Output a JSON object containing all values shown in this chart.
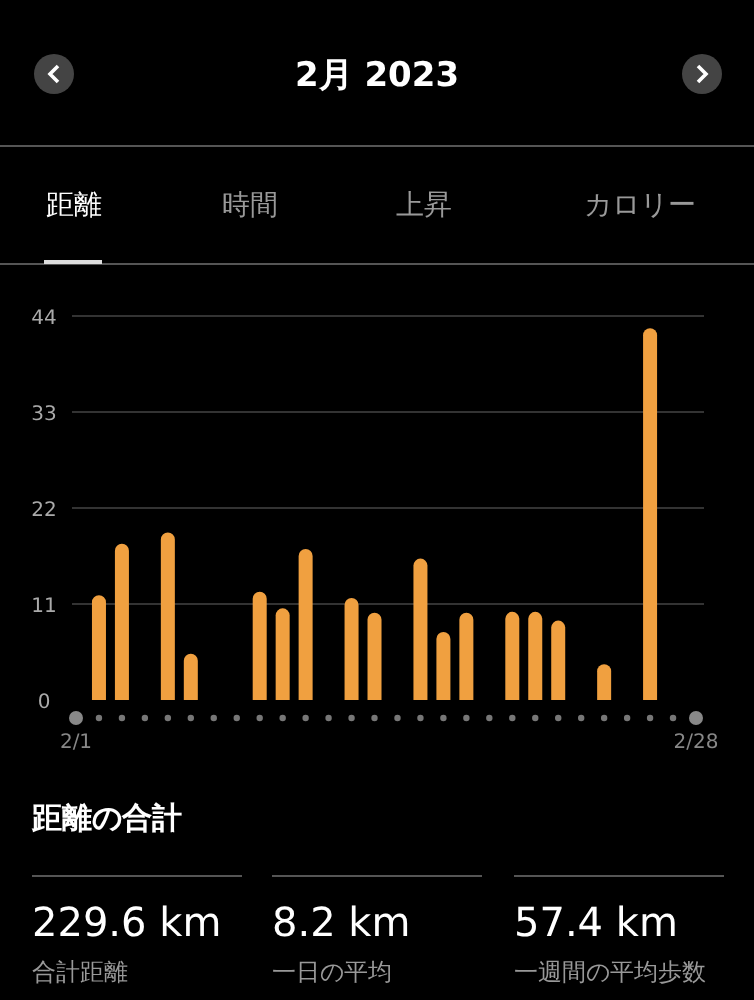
{
  "chart_data": {
    "type": "bar",
    "title": "2月 2023",
    "categories": [
      "2/1",
      null,
      null,
      null,
      null,
      null,
      null,
      null,
      null,
      null,
      null,
      null,
      null,
      null,
      null,
      null,
      null,
      null,
      null,
      null,
      null,
      null,
      null,
      null,
      null,
      null,
      null,
      "2/28"
    ],
    "values": [
      null,
      12.0,
      17.9,
      null,
      19.2,
      5.3,
      null,
      null,
      12.4,
      10.5,
      17.3,
      null,
      11.7,
      10.0,
      null,
      16.2,
      7.8,
      10.0,
      null,
      10.1,
      10.1,
      9.1,
      null,
      4.1,
      null,
      42.6,
      null,
      null
    ],
    "color": "#f0a040",
    "ylim": [
      0,
      44
    ],
    "yticks": [
      0,
      11,
      22,
      33,
      44
    ],
    "grid": "y",
    "annotations": [
      "距離",
      "時間",
      "上昇",
      "カロリー",
      "距離の合計",
      "229.6 km",
      "合計距離",
      "8.2 km",
      "一日の平均",
      "57.4 km",
      "一週間の平均歩数"
    ]
  }
}
